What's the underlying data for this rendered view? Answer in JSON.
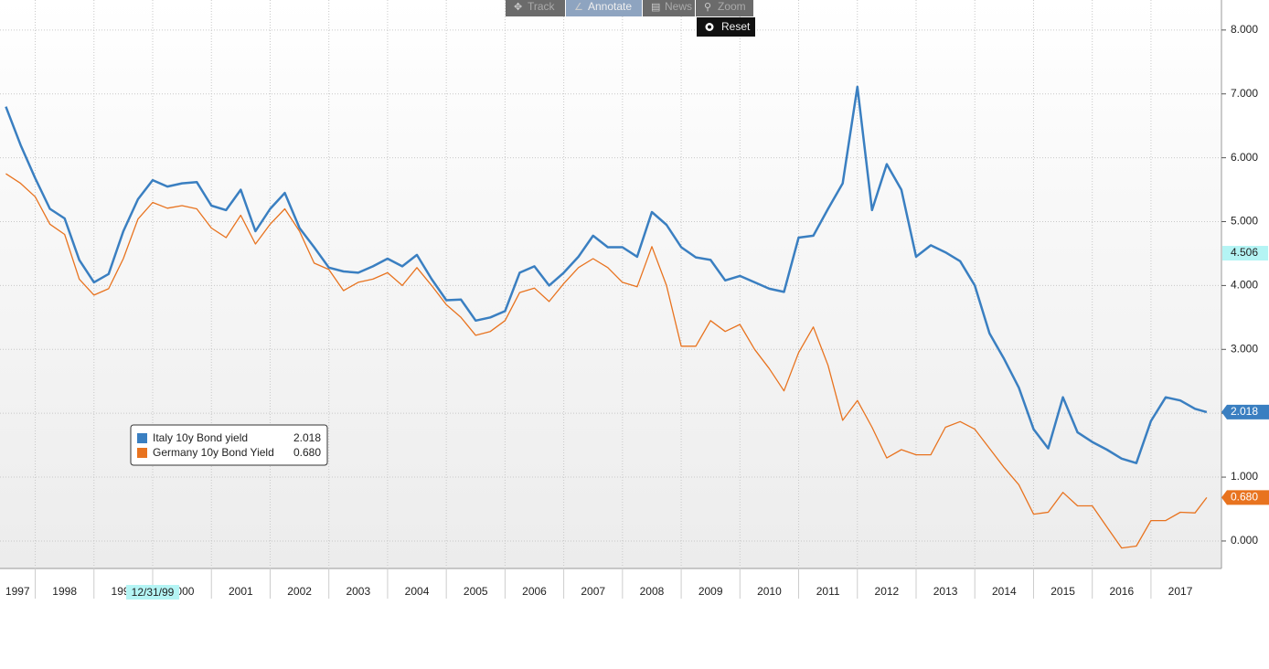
{
  "chart_data": {
    "type": "line",
    "toolbar": [
      "Track",
      "Annotate",
      "News",
      "Zoom"
    ],
    "reset": "Reset",
    "x": [
      1997.5,
      1997.75,
      1998,
      1998.25,
      1998.5,
      1998.75,
      1999,
      1999.25,
      1999.5,
      1999.75,
      2000,
      2000.25,
      2000.5,
      2000.75,
      2001,
      2001.25,
      2001.5,
      2001.75,
      2002,
      2002.25,
      2002.5,
      2002.75,
      2003,
      2003.25,
      2003.5,
      2003.75,
      2004,
      2004.25,
      2004.5,
      2004.75,
      2005,
      2005.25,
      2005.5,
      2005.75,
      2006,
      2006.25,
      2006.5,
      2006.75,
      2007,
      2007.25,
      2007.5,
      2007.75,
      2008,
      2008.25,
      2008.5,
      2008.75,
      2009,
      2009.25,
      2009.5,
      2009.75,
      2010,
      2010.25,
      2010.5,
      2010.75,
      2011,
      2011.25,
      2011.5,
      2011.75,
      2012,
      2012.25,
      2012.5,
      2012.75,
      2013,
      2013.25,
      2013.5,
      2013.75,
      2014,
      2014.25,
      2014.5,
      2014.75,
      2015,
      2015.25,
      2015.5,
      2015.75,
      2016,
      2016.25,
      2016.5,
      2016.75,
      2017,
      2017.25,
      2017.5,
      2017.75,
      2017.95
    ],
    "series": [
      {
        "name": "Italy 10y Bond yield",
        "color": "#3a7fc1",
        "last_label": "2.018",
        "values": [
          6.8,
          6.2,
          5.68,
          5.2,
          5.05,
          4.4,
          4.05,
          4.18,
          4.85,
          5.35,
          5.65,
          5.55,
          5.6,
          5.62,
          5.25,
          5.18,
          5.5,
          4.85,
          5.2,
          5.45,
          4.9,
          4.6,
          4.28,
          4.22,
          4.2,
          4.3,
          4.42,
          4.3,
          4.48,
          4.1,
          3.77,
          3.78,
          3.45,
          3.5,
          3.6,
          4.2,
          4.3,
          4.0,
          4.2,
          4.45,
          4.78,
          4.6,
          4.6,
          4.45,
          5.15,
          4.95,
          4.6,
          4.44,
          4.4,
          4.08,
          4.15,
          4.05,
          3.95,
          3.9,
          4.75,
          4.78,
          5.2,
          5.6,
          7.11,
          5.18,
          5.9,
          5.5,
          4.45,
          4.63,
          4.52,
          4.38,
          4.0,
          3.25,
          2.85,
          2.4,
          1.75,
          1.45,
          2.25,
          1.7,
          1.55,
          1.43,
          1.29,
          1.22,
          1.88,
          2.25,
          2.2,
          2.07,
          2.018
        ]
      },
      {
        "name": "Germany 10y Bond Yield",
        "color": "#e8731f",
        "last_label": "0.680",
        "values": [
          5.75,
          5.6,
          5.39,
          4.96,
          4.8,
          4.1,
          3.85,
          3.95,
          4.42,
          5.04,
          5.3,
          5.21,
          5.25,
          5.2,
          4.9,
          4.75,
          5.1,
          4.65,
          4.96,
          5.2,
          4.85,
          4.35,
          4.25,
          3.92,
          4.05,
          4.1,
          4.2,
          4.0,
          4.28,
          4.0,
          3.7,
          3.5,
          3.22,
          3.28,
          3.45,
          3.89,
          3.96,
          3.75,
          4.03,
          4.28,
          4.42,
          4.28,
          4.05,
          3.98,
          4.61,
          4.0,
          3.05,
          3.05,
          3.45,
          3.28,
          3.39,
          3.0,
          2.7,
          2.35,
          2.95,
          3.35,
          2.75,
          1.89,
          2.2,
          1.78,
          1.3,
          1.43,
          1.35,
          1.35,
          1.78,
          1.87,
          1.75,
          1.45,
          1.15,
          0.88,
          0.42,
          0.45,
          0.76,
          0.55,
          0.55,
          0.22,
          -0.11,
          -0.08,
          0.32,
          0.32,
          0.45,
          0.44,
          0.68
        ]
      }
    ],
    "xlim": [
      1997.4,
      2018.2
    ],
    "xticks": [
      1997,
      1998,
      1999,
      2000,
      2001,
      2002,
      2003,
      2004,
      2005,
      2006,
      2007,
      2008,
      2009,
      2010,
      2011,
      2012,
      2013,
      2014,
      2015,
      2016,
      2017
    ],
    "ylim": [
      -0.43,
      8.47
    ],
    "yticks": [
      {
        "value": 0,
        "label": "0.000"
      },
      {
        "value": 1,
        "label": "1.000"
      },
      {
        "value": 2,
        "label": "2.000"
      },
      {
        "value": 3,
        "label": "3.000"
      },
      {
        "value": 4,
        "label": "4.000"
      },
      {
        "value": 5,
        "label": "5.000"
      },
      {
        "value": 6,
        "label": "6.000"
      },
      {
        "value": 7,
        "label": "7.000"
      },
      {
        "value": 8,
        "label": "8.000"
      }
    ],
    "cursor": {
      "value": 4.506,
      "label": "4.506"
    },
    "cursor_date": "12/31/99",
    "grid": true
  }
}
